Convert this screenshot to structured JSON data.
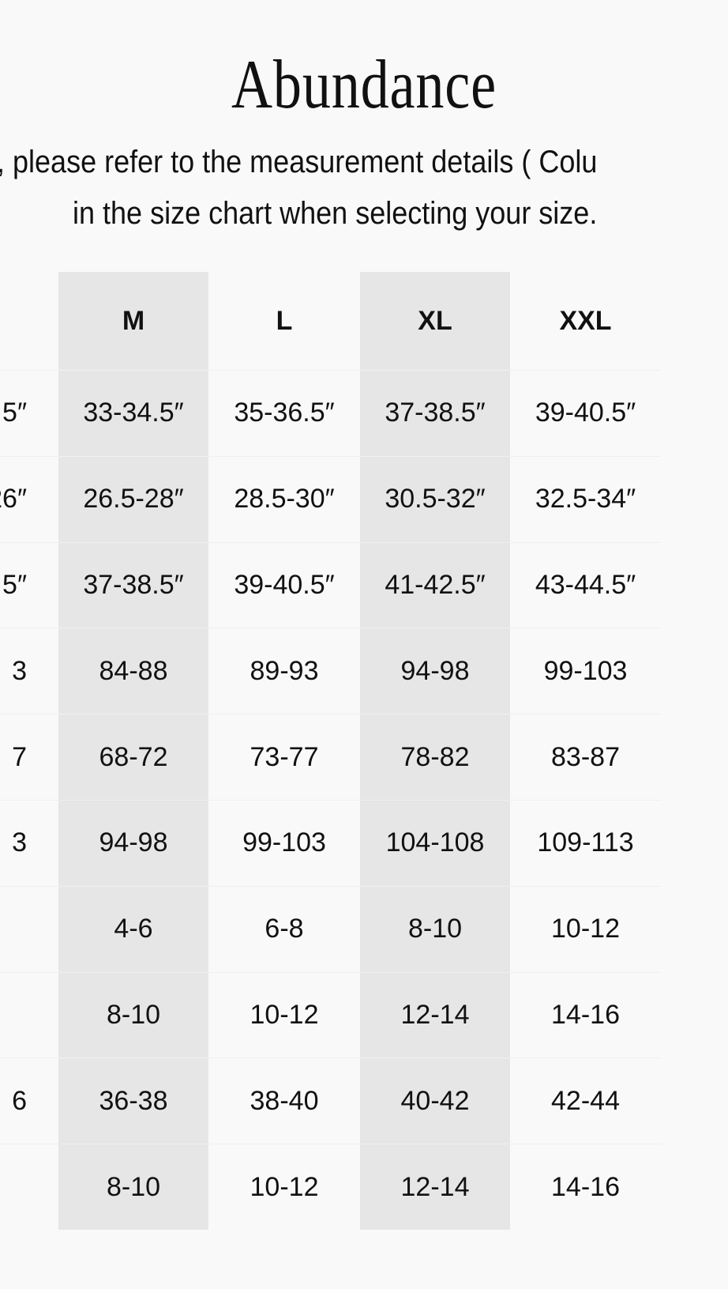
{
  "title": "Abundance",
  "subtitle_line1": ", please refer to the measurement details ( Colu",
  "subtitle_line2": "in the size chart when selecting your size.",
  "table": {
    "partial_left_column": [
      ".5″",
      "26″",
      ".5″",
      "3",
      "7",
      "3",
      "",
      "",
      "6",
      ""
    ],
    "columns": [
      {
        "header": "M",
        "shaded": true,
        "values": [
          "33-34.5″",
          "26.5-28″",
          "37-38.5″",
          "84-88",
          "68-72",
          "94-98",
          "4-6",
          "8-10",
          "36-38",
          "8-10"
        ]
      },
      {
        "header": "L",
        "shaded": false,
        "values": [
          "35-36.5″",
          "28.5-30″",
          "39-40.5″",
          "89-93",
          "73-77",
          "99-103",
          "6-8",
          "10-12",
          "38-40",
          "10-12"
        ]
      },
      {
        "header": "XL",
        "shaded": true,
        "values": [
          "37-38.5″",
          "30.5-32″",
          "41-42.5″",
          "94-98",
          "78-82",
          "104-108",
          "8-10",
          "12-14",
          "40-42",
          "12-14"
        ]
      },
      {
        "header": "XXL",
        "shaded": false,
        "values": [
          "39-40.5″",
          "32.5-34″",
          "43-44.5″",
          "99-103",
          "83-87",
          "109-113",
          "10-12",
          "14-16",
          "42-44",
          "14-16"
        ]
      }
    ]
  },
  "colors": {
    "background": "#f9f9f9",
    "shaded_column": "#e6e6e6",
    "text": "#111111"
  }
}
